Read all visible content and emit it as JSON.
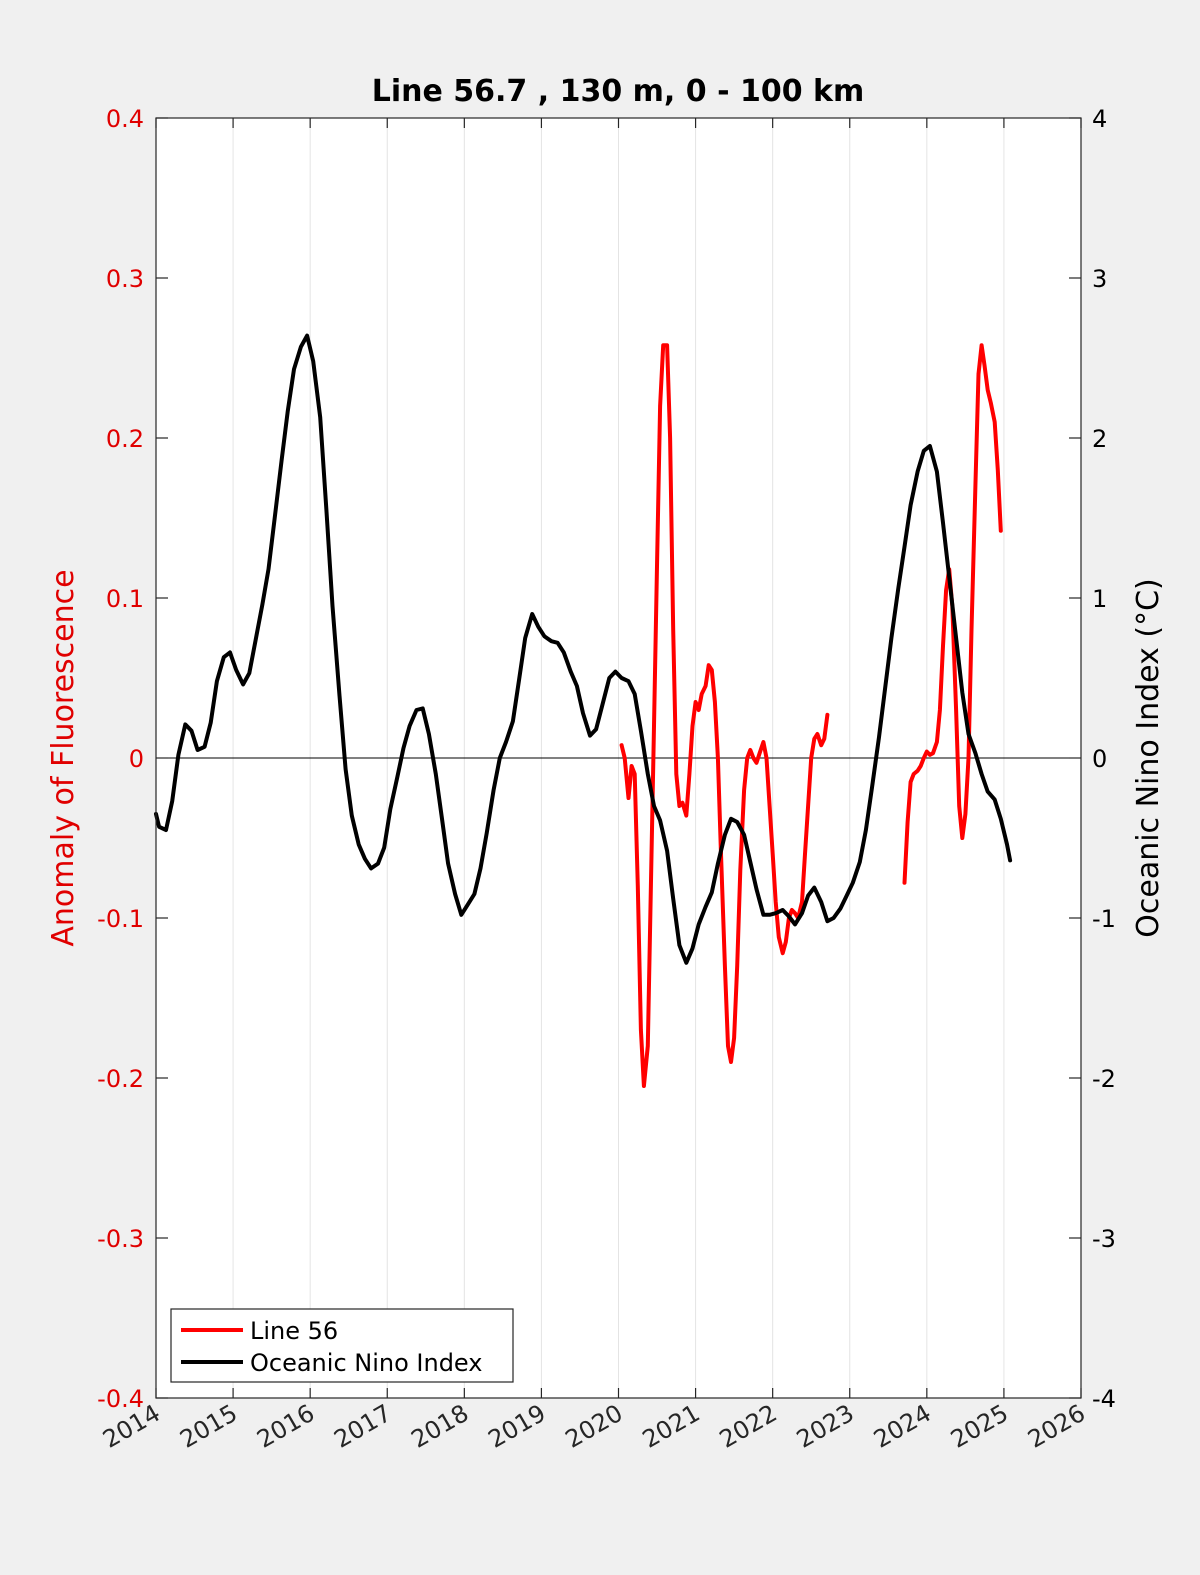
{
  "chart_data": {
    "type": "line",
    "title": "Line 56.7 , 130 m, 0 - 100 km",
    "xlabel": "",
    "ylabel": "Anomaly of Fluorescence",
    "y2label": "Oceanic Nino Index (°C)",
    "xlim": [
      2014,
      2026
    ],
    "ylim": [
      -0.4,
      0.4
    ],
    "y2lim": [
      -4,
      4
    ],
    "xticks": [
      2014,
      2015,
      2016,
      2017,
      2018,
      2019,
      2020,
      2021,
      2022,
      2023,
      2024,
      2025,
      2026
    ],
    "yticks": [
      "0.4",
      "0.3",
      "0.2",
      "0.1",
      "0",
      "-0.1",
      "-0.2",
      "-0.3",
      "-0.4"
    ],
    "y2ticks": [
      "4",
      "3",
      "2",
      "1",
      "0",
      "-1",
      "-2",
      "-3",
      "-4"
    ],
    "grid": "vertical",
    "legend_position": "bottom-left",
    "colors": {
      "left_axis": "#e00000",
      "right_axis": "#000000",
      "line56": "#ff0000",
      "oni": "#000000"
    },
    "series": [
      {
        "name": "Line 56",
        "axis": "left",
        "segments": [
          [
            [
              2020.04,
              0.008
            ],
            [
              2020.08,
              0.0
            ],
            [
              2020.13,
              -0.025
            ],
            [
              2020.17,
              -0.005
            ],
            [
              2020.21,
              -0.01
            ],
            [
              2020.25,
              -0.08
            ],
            [
              2020.29,
              -0.17
            ],
            [
              2020.33,
              -0.205
            ],
            [
              2020.38,
              -0.18
            ],
            [
              2020.42,
              -0.08
            ],
            [
              2020.46,
              0.02
            ],
            [
              2020.5,
              0.12
            ],
            [
              2020.54,
              0.22
            ],
            [
              2020.58,
              0.258
            ],
            [
              2020.63,
              0.258
            ],
            [
              2020.67,
              0.2
            ],
            [
              2020.71,
              0.08
            ],
            [
              2020.75,
              -0.01
            ],
            [
              2020.79,
              -0.03
            ],
            [
              2020.83,
              -0.028
            ],
            [
              2020.88,
              -0.036
            ],
            [
              2020.92,
              -0.01
            ],
            [
              2020.96,
              0.02
            ],
            [
              2021.0,
              0.035
            ],
            [
              2021.04,
              0.03
            ],
            [
              2021.08,
              0.04
            ],
            [
              2021.13,
              0.045
            ],
            [
              2021.17,
              0.058
            ],
            [
              2021.21,
              0.055
            ],
            [
              2021.25,
              0.035
            ],
            [
              2021.29,
              0.0
            ],
            [
              2021.33,
              -0.06
            ],
            [
              2021.38,
              -0.13
            ],
            [
              2021.42,
              -0.18
            ],
            [
              2021.46,
              -0.19
            ],
            [
              2021.5,
              -0.175
            ],
            [
              2021.54,
              -0.13
            ],
            [
              2021.58,
              -0.07
            ],
            [
              2021.63,
              -0.02
            ],
            [
              2021.67,
              0.0
            ],
            [
              2021.71,
              0.005
            ],
            [
              2021.75,
              0.0
            ],
            [
              2021.79,
              -0.003
            ],
            [
              2021.83,
              0.003
            ],
            [
              2021.88,
              0.01
            ],
            [
              2021.92,
              0.0
            ],
            [
              2021.96,
              -0.03
            ],
            [
              2022.0,
              -0.06
            ],
            [
              2022.04,
              -0.09
            ],
            [
              2022.08,
              -0.112
            ],
            [
              2022.13,
              -0.122
            ],
            [
              2022.17,
              -0.115
            ],
            [
              2022.21,
              -0.1
            ],
            [
              2022.25,
              -0.095
            ],
            [
              2022.29,
              -0.097
            ],
            [
              2022.33,
              -0.1
            ],
            [
              2022.38,
              -0.09
            ],
            [
              2022.42,
              -0.06
            ],
            [
              2022.46,
              -0.03
            ],
            [
              2022.5,
              0.0
            ],
            [
              2022.54,
              0.012
            ],
            [
              2022.58,
              0.015
            ],
            [
              2022.63,
              0.008
            ],
            [
              2022.67,
              0.012
            ],
            [
              2022.71,
              0.027
            ]
          ],
          [
            [
              2023.71,
              -0.078
            ],
            [
              2023.75,
              -0.04
            ],
            [
              2023.79,
              -0.015
            ],
            [
              2023.83,
              -0.01
            ],
            [
              2023.88,
              -0.008
            ],
            [
              2023.92,
              -0.005
            ],
            [
              2023.96,
              0.0
            ],
            [
              2024.0,
              0.004
            ],
            [
              2024.04,
              0.002
            ],
            [
              2024.08,
              0.003
            ],
            [
              2024.13,
              0.01
            ],
            [
              2024.17,
              0.03
            ],
            [
              2024.21,
              0.07
            ],
            [
              2024.25,
              0.105
            ],
            [
              2024.29,
              0.118
            ],
            [
              2024.33,
              0.095
            ],
            [
              2024.38,
              0.03
            ],
            [
              2024.42,
              -0.03
            ],
            [
              2024.46,
              -0.05
            ],
            [
              2024.5,
              -0.035
            ],
            [
              2024.54,
              0.0
            ],
            [
              2024.58,
              0.08
            ],
            [
              2024.63,
              0.17
            ],
            [
              2024.67,
              0.24
            ],
            [
              2024.71,
              0.258
            ],
            [
              2024.75,
              0.245
            ],
            [
              2024.79,
              0.23
            ],
            [
              2024.83,
              0.222
            ],
            [
              2024.88,
              0.21
            ],
            [
              2024.92,
              0.18
            ],
            [
              2024.96,
              0.142
            ]
          ]
        ]
      },
      {
        "name": "Oceanic Nino Index",
        "axis": "right",
        "segments": [
          [
            [
              2014.0,
              -0.35
            ],
            [
              2014.04,
              -0.43
            ],
            [
              2014.13,
              -0.45
            ],
            [
              2014.21,
              -0.27
            ],
            [
              2014.29,
              0.02
            ],
            [
              2014.38,
              0.21
            ],
            [
              2014.46,
              0.17
            ],
            [
              2014.54,
              0.05
            ],
            [
              2014.63,
              0.07
            ],
            [
              2014.71,
              0.22
            ],
            [
              2014.79,
              0.48
            ],
            [
              2014.88,
              0.63
            ],
            [
              2014.96,
              0.66
            ],
            [
              2015.04,
              0.55
            ],
            [
              2015.13,
              0.46
            ],
            [
              2015.21,
              0.53
            ],
            [
              2015.29,
              0.73
            ],
            [
              2015.38,
              0.96
            ],
            [
              2015.46,
              1.18
            ],
            [
              2015.54,
              1.5
            ],
            [
              2015.63,
              1.86
            ],
            [
              2015.71,
              2.17
            ],
            [
              2015.79,
              2.43
            ],
            [
              2015.88,
              2.57
            ],
            [
              2015.96,
              2.64
            ],
            [
              2016.04,
              2.48
            ],
            [
              2016.13,
              2.13
            ],
            [
              2016.21,
              1.55
            ],
            [
              2016.29,
              0.95
            ],
            [
              2016.38,
              0.39
            ],
            [
              2016.46,
              -0.07
            ],
            [
              2016.54,
              -0.36
            ],
            [
              2016.63,
              -0.54
            ],
            [
              2016.71,
              -0.63
            ],
            [
              2016.79,
              -0.69
            ],
            [
              2016.88,
              -0.66
            ],
            [
              2016.96,
              -0.56
            ],
            [
              2017.04,
              -0.32
            ],
            [
              2017.13,
              -0.12
            ],
            [
              2017.21,
              0.06
            ],
            [
              2017.29,
              0.2
            ],
            [
              2017.38,
              0.3
            ],
            [
              2017.46,
              0.31
            ],
            [
              2017.54,
              0.15
            ],
            [
              2017.63,
              -0.1
            ],
            [
              2017.71,
              -0.38
            ],
            [
              2017.79,
              -0.66
            ],
            [
              2017.88,
              -0.85
            ],
            [
              2017.96,
              -0.98
            ],
            [
              2018.04,
              -0.92
            ],
            [
              2018.13,
              -0.85
            ],
            [
              2018.21,
              -0.69
            ],
            [
              2018.29,
              -0.47
            ],
            [
              2018.38,
              -0.2
            ],
            [
              2018.46,
              0.0
            ],
            [
              2018.54,
              0.1
            ],
            [
              2018.63,
              0.23
            ],
            [
              2018.71,
              0.49
            ],
            [
              2018.79,
              0.75
            ],
            [
              2018.88,
              0.9
            ],
            [
              2018.96,
              0.82
            ],
            [
              2019.04,
              0.76
            ],
            [
              2019.13,
              0.73
            ],
            [
              2019.21,
              0.72
            ],
            [
              2019.29,
              0.66
            ],
            [
              2019.38,
              0.54
            ],
            [
              2019.46,
              0.45
            ],
            [
              2019.54,
              0.28
            ],
            [
              2019.63,
              0.14
            ],
            [
              2019.71,
              0.18
            ],
            [
              2019.79,
              0.33
            ],
            [
              2019.88,
              0.5
            ],
            [
              2019.96,
              0.54
            ],
            [
              2020.04,
              0.5
            ],
            [
              2020.13,
              0.48
            ],
            [
              2020.21,
              0.4
            ],
            [
              2020.29,
              0.17
            ],
            [
              2020.38,
              -0.1
            ],
            [
              2020.46,
              -0.3
            ],
            [
              2020.54,
              -0.39
            ],
            [
              2020.63,
              -0.58
            ],
            [
              2020.71,
              -0.88
            ],
            [
              2020.79,
              -1.17
            ],
            [
              2020.88,
              -1.28
            ],
            [
              2020.96,
              -1.19
            ],
            [
              2021.04,
              -1.04
            ],
            [
              2021.13,
              -0.93
            ],
            [
              2021.21,
              -0.84
            ],
            [
              2021.29,
              -0.66
            ],
            [
              2021.38,
              -0.48
            ],
            [
              2021.46,
              -0.38
            ],
            [
              2021.54,
              -0.4
            ],
            [
              2021.63,
              -0.48
            ],
            [
              2021.71,
              -0.65
            ],
            [
              2021.79,
              -0.82
            ],
            [
              2021.88,
              -0.98
            ],
            [
              2021.96,
              -0.98
            ],
            [
              2022.04,
              -0.97
            ],
            [
              2022.13,
              -0.95
            ],
            [
              2022.21,
              -0.99
            ],
            [
              2022.29,
              -1.04
            ],
            [
              2022.38,
              -0.97
            ],
            [
              2022.46,
              -0.86
            ],
            [
              2022.54,
              -0.81
            ],
            [
              2022.63,
              -0.9
            ],
            [
              2022.71,
              -1.02
            ],
            [
              2022.79,
              -1.0
            ],
            [
              2022.88,
              -0.94
            ],
            [
              2022.96,
              -0.86
            ],
            [
              2023.04,
              -0.78
            ],
            [
              2023.13,
              -0.65
            ],
            [
              2023.21,
              -0.45
            ],
            [
              2023.29,
              -0.18
            ],
            [
              2023.38,
              0.13
            ],
            [
              2023.46,
              0.44
            ],
            [
              2023.54,
              0.75
            ],
            [
              2023.63,
              1.06
            ],
            [
              2023.71,
              1.32
            ],
            [
              2023.79,
              1.58
            ],
            [
              2023.88,
              1.79
            ],
            [
              2023.96,
              1.92
            ],
            [
              2024.04,
              1.95
            ],
            [
              2024.13,
              1.79
            ],
            [
              2024.21,
              1.47
            ],
            [
              2024.29,
              1.13
            ],
            [
              2024.38,
              0.75
            ],
            [
              2024.46,
              0.41
            ],
            [
              2024.54,
              0.15
            ],
            [
              2024.63,
              0.03
            ],
            [
              2024.71,
              -0.1
            ],
            [
              2024.79,
              -0.21
            ],
            [
              2024.88,
              -0.26
            ],
            [
              2024.96,
              -0.38
            ],
            [
              2025.04,
              -0.54
            ],
            [
              2025.08,
              -0.64
            ]
          ]
        ]
      }
    ]
  }
}
